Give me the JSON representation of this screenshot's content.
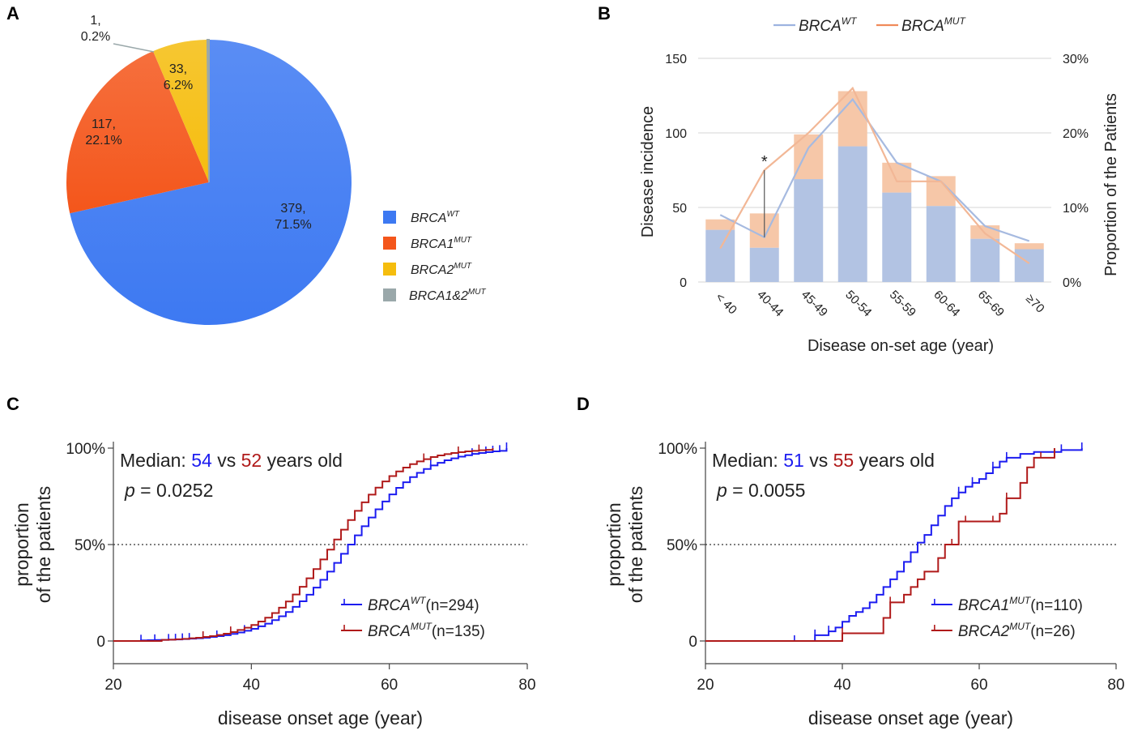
{
  "panel_labels": [
    "A",
    "B",
    "C",
    "D"
  ],
  "chart_data": [
    {
      "id": "A",
      "type": "pie",
      "slices": [
        {
          "label": "BRCA",
          "sup": "WT",
          "count": 379,
          "value_label": "379,",
          "percent_label": "71.5%",
          "color": "#3d79f2"
        },
        {
          "label": "BRCA1",
          "sup": "MUT",
          "count": 117,
          "value_label": "117,",
          "percent_label": "22.1%",
          "color": "#f4561b"
        },
        {
          "label": "BRCA2",
          "sup": "MUT",
          "count": 33,
          "value_label": "33,",
          "percent_label": "6.2%",
          "color": "#f5bd0e"
        },
        {
          "label": "BRCA1&2",
          "sup": "MUT",
          "count": 1,
          "value_label": "1,",
          "percent_label": "0.2%",
          "color": "#9aa8aa"
        }
      ],
      "legend_position": "right"
    },
    {
      "id": "B",
      "type": "bar",
      "categories": [
        "< 40",
        "40-44",
        "45-49",
        "50-54",
        "55-59",
        "60-64",
        "65-69",
        "≥70"
      ],
      "series": [
        {
          "name": "BRCA",
          "sup": "WT",
          "kind": "stacked-bar",
          "values": [
            35,
            23,
            69,
            91,
            60,
            51,
            29,
            22
          ],
          "color": "#b2c3e3"
        },
        {
          "name": "BRCA",
          "sup": "MUT",
          "kind": "stacked-bar",
          "values": [
            7,
            23,
            30,
            37,
            20,
            20,
            9,
            4
          ],
          "color": "#f6c7a8"
        },
        {
          "name": "BRCA",
          "sup": "WT",
          "kind": "line",
          "axis": "right",
          "values": [
            9,
            6,
            18,
            24.5,
            16,
            13.5,
            7.5,
            5.5
          ],
          "color": "#a6bae0"
        },
        {
          "name": "BRCA",
          "sup": "MUT",
          "kind": "line",
          "axis": "right",
          "values": [
            4.5,
            15,
            20,
            26,
            13.5,
            13.5,
            6.5,
            2.5
          ],
          "color": "#f2b796"
        }
      ],
      "ylabel": "Disease incidence",
      "y2label": "Proportion of the Patients",
      "xlabel": "Disease on-set age (year)",
      "ylim": [
        0,
        150
      ],
      "y2lim": [
        0,
        30
      ],
      "yticks": [
        "0",
        "50",
        "100",
        "150"
      ],
      "y2ticks": [
        "0%",
        "10%",
        "20%",
        "30%"
      ],
      "annotation": "*",
      "legend": [
        {
          "name": "BRCA",
          "sup": "WT",
          "color": "#9db3e0"
        },
        {
          "name": "BRCA",
          "sup": "MUT",
          "color": "#f08a5a"
        }
      ],
      "legend_position": "top",
      "grid": true
    },
    {
      "id": "C",
      "type": "line",
      "subtype": "step",
      "xlabel": "disease onset age (year)",
      "ylabel_line1": "proportion",
      "ylabel_line2": "of the patients",
      "xlim": [
        20,
        80
      ],
      "ylim": [
        0,
        100
      ],
      "xticks": [
        "20",
        "40",
        "60",
        "80"
      ],
      "yticks": [
        "0",
        "50%",
        "100%"
      ],
      "median_prefix": "Median: ",
      "median_a": "54",
      "median_vs": " vs ",
      "median_b": "52",
      "median_suffix": " years old",
      "p_label": "p",
      "p_text": " = 0.0252",
      "reference_line": 50,
      "series": [
        {
          "name": "BRCA",
          "sup": "WT",
          "n_label": "(n=294)",
          "color": "#1c1cf0",
          "x_range": [
            24,
            77
          ]
        },
        {
          "name": "BRCA",
          "sup": "MUT",
          "n_label": "(n=135)",
          "color": "#b01a1a",
          "x_range": [
            27,
            75
          ]
        }
      ],
      "legend_position": "bottom-right"
    },
    {
      "id": "D",
      "type": "line",
      "subtype": "step",
      "xlabel": "disease onset age (year)",
      "ylabel_line1": "proportion",
      "ylabel_line2": "of the patients",
      "xlim": [
        20,
        80
      ],
      "ylim": [
        0,
        100
      ],
      "xticks": [
        "20",
        "40",
        "60",
        "80"
      ],
      "yticks": [
        "0",
        "50%",
        "100%"
      ],
      "median_prefix": "Median: ",
      "median_a": "51",
      "median_vs": " vs ",
      "median_b": "55",
      "median_suffix": " years old",
      "p_label": "p",
      "p_text": " = 0.0055",
      "reference_line": 50,
      "series": [
        {
          "name": "BRCA1",
          "sup": "MUT",
          "n_label": "(n=110)",
          "color": "#1c1cf0",
          "steps": [
            [
              20,
              0
            ],
            [
              33,
              0
            ],
            [
              36,
              3
            ],
            [
              38,
              5
            ],
            [
              39,
              7
            ],
            [
              40,
              10
            ],
            [
              41,
              13
            ],
            [
              42,
              15
            ],
            [
              43,
              17
            ],
            [
              44,
              20
            ],
            [
              45,
              24
            ],
            [
              46,
              28
            ],
            [
              47,
              32
            ],
            [
              48,
              36
            ],
            [
              49,
              41
            ],
            [
              50,
              46
            ],
            [
              51,
              51
            ],
            [
              52,
              55
            ],
            [
              53,
              60
            ],
            [
              54,
              65
            ],
            [
              55,
              70
            ],
            [
              56,
              74
            ],
            [
              57,
              77
            ],
            [
              58,
              80
            ],
            [
              59,
              82
            ],
            [
              60,
              84
            ],
            [
              61,
              87
            ],
            [
              62,
              90
            ],
            [
              63,
              93
            ],
            [
              64,
              95
            ],
            [
              66,
              97
            ],
            [
              68,
              98
            ],
            [
              72,
              99
            ],
            [
              75,
              100
            ]
          ],
          "ticks": [
            33,
            36,
            38,
            57,
            59,
            62,
            64,
            72,
            75
          ]
        },
        {
          "name": "BRCA2",
          "sup": "MUT",
          "n_label": "(n=26)",
          "color": "#b01a1a",
          "steps": [
            [
              20,
              0
            ],
            [
              40,
              0
            ],
            [
              40,
              4
            ],
            [
              46,
              4
            ],
            [
              46,
              12
            ],
            [
              47,
              20
            ],
            [
              49,
              24
            ],
            [
              50,
              28
            ],
            [
              51,
              32
            ],
            [
              52,
              36
            ],
            [
              54,
              43
            ],
            [
              55,
              50
            ],
            [
              57,
              62
            ],
            [
              62,
              62
            ],
            [
              63,
              66
            ],
            [
              64,
              74
            ],
            [
              66,
              82
            ],
            [
              67,
              90
            ],
            [
              68,
              95
            ],
            [
              71,
              100
            ]
          ],
          "ticks": [
            40,
            47,
            56,
            58,
            62,
            64,
            69
          ]
        }
      ],
      "legend_position": "bottom-right"
    }
  ]
}
